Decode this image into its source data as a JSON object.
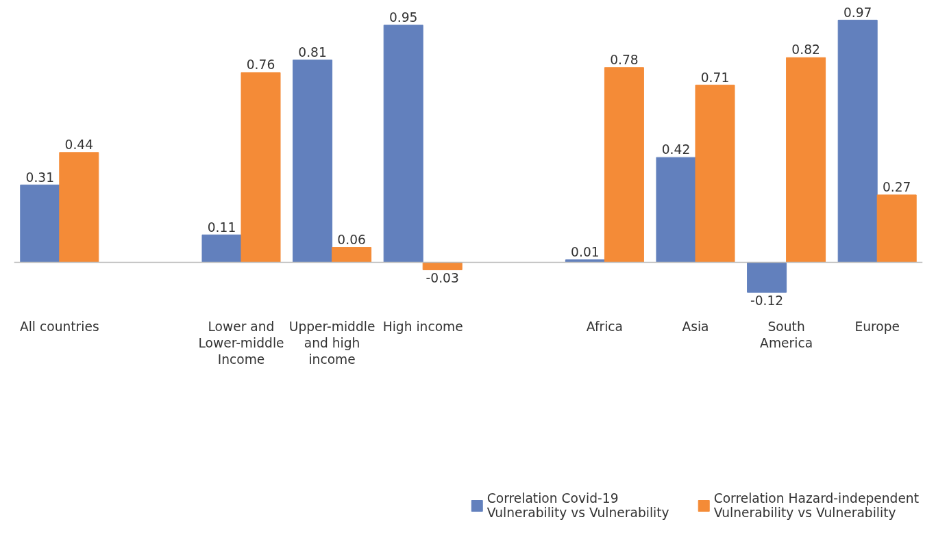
{
  "chart_data": {
    "type": "bar",
    "categories": [
      "All countries",
      null,
      "Lower and\nLower-middle\nIncome",
      "Upper-middle\nand high\nincome",
      "High income",
      null,
      "Africa",
      "Asia",
      "South\nAmerica",
      "Europe"
    ],
    "series": [
      {
        "name": "Correlation Covid-19\nVulnerability vs Vulnerability",
        "color": "#6280bd",
        "values": [
          0.31,
          null,
          0.11,
          0.81,
          0.95,
          null,
          0.01,
          0.42,
          -0.12,
          0.97
        ]
      },
      {
        "name": "Correlation Hazard-independent\nVulnerability vs Vulnerability",
        "color": "#f48b37",
        "values": [
          0.44,
          null,
          0.76,
          0.06,
          -0.03,
          null,
          0.78,
          0.71,
          0.82,
          0.27
        ]
      }
    ],
    "data_labels": true,
    "grid": false,
    "legend": "bottom right"
  }
}
